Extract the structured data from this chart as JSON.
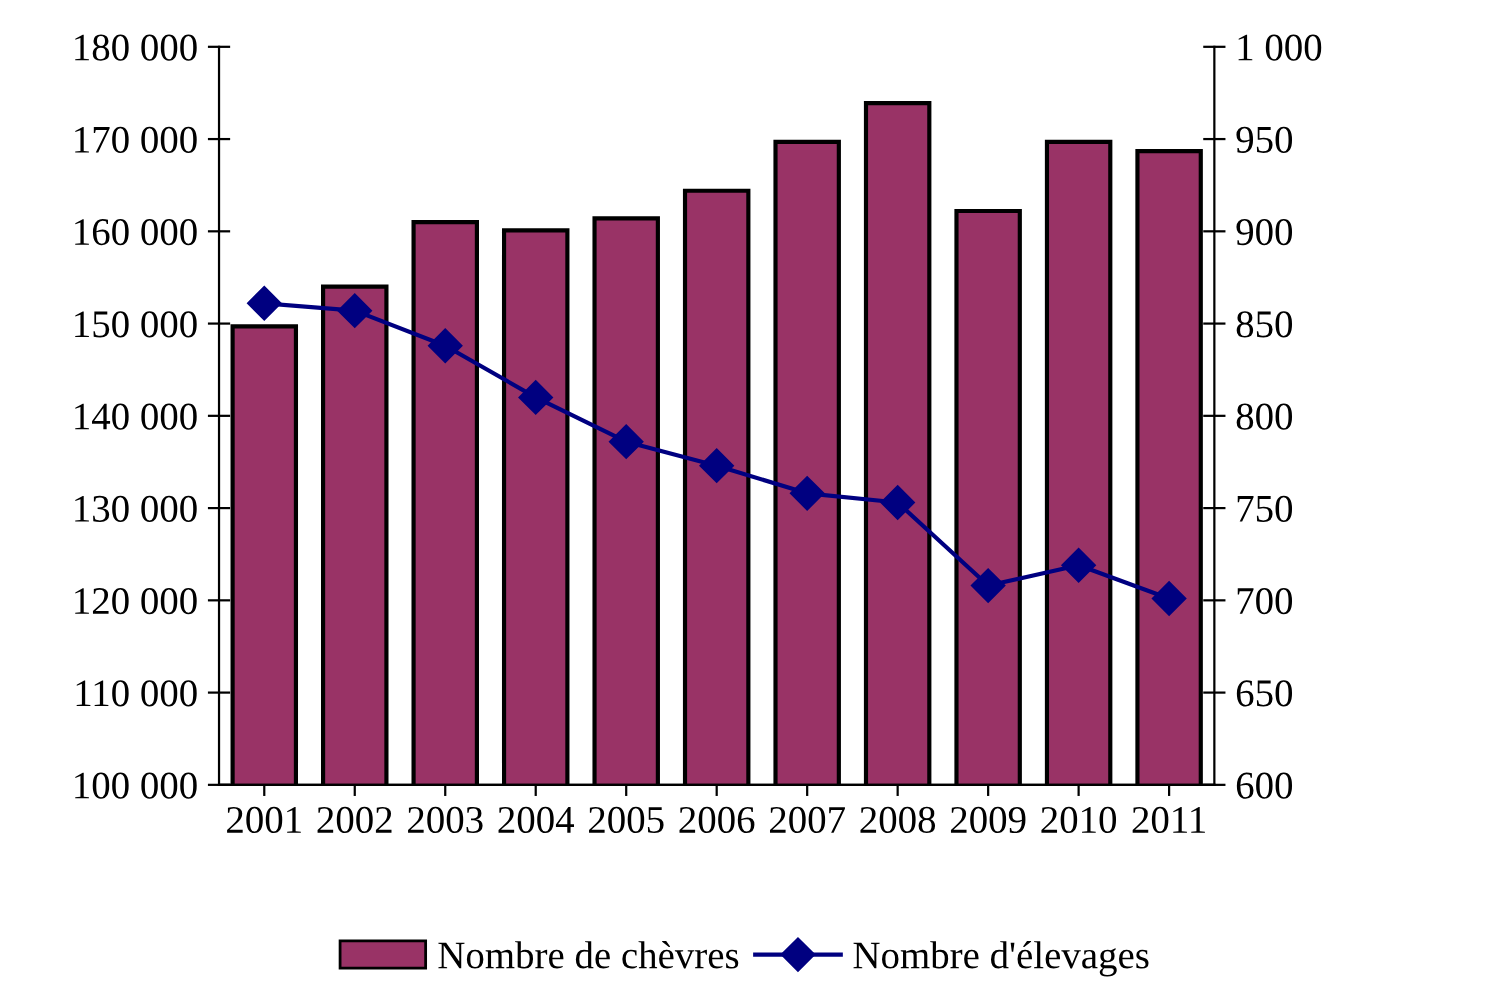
{
  "chart_data": {
    "type": "bar",
    "categories": [
      "2001",
      "2002",
      "2003",
      "2004",
      "2005",
      "2006",
      "2007",
      "2008",
      "2009",
      "2010",
      "2011"
    ],
    "series": [
      {
        "name": "Nombre de chèvres",
        "color": "#993366",
        "values": [
          149700,
          154000,
          161000,
          160100,
          161400,
          164400,
          169700,
          173900,
          162200,
          169700,
          168700
        ]
      },
      {
        "name": "Nombre d'élevages",
        "type": "line",
        "axis": "y2",
        "color": "#000080",
        "marker": "diamond",
        "values": [
          861,
          857,
          838,
          810,
          786,
          773,
          758,
          753,
          708,
          719,
          701
        ]
      }
    ],
    "ylim": [
      100000,
      180000
    ],
    "yticks": [
      {
        "value": 100000,
        "label": "100 000"
      },
      {
        "value": 110000,
        "label": "110 000"
      },
      {
        "value": 120000,
        "label": "120 000"
      },
      {
        "value": 130000,
        "label": "130 000"
      },
      {
        "value": 140000,
        "label": "140 000"
      },
      {
        "value": 150000,
        "label": "150 000"
      },
      {
        "value": 160000,
        "label": "160 000"
      },
      {
        "value": 170000,
        "label": "170 000"
      },
      {
        "value": 180000,
        "label": "180 000"
      }
    ],
    "y2lim": [
      600,
      1000
    ],
    "y2ticks": [
      600,
      650,
      700,
      750,
      800,
      850,
      900,
      950,
      {
        "value": 1000,
        "label": "1 000"
      }
    ],
    "grid": false,
    "legend": "bottom"
  }
}
